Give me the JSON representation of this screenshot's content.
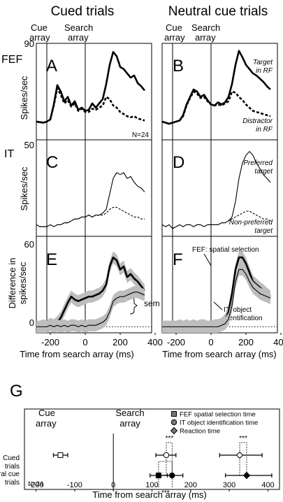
{
  "column_titles": [
    "Cued trials",
    "Neutral cue trials"
  ],
  "event_labels": {
    "cue_line1": "Cue",
    "cue_line2": "array",
    "search_line1": "Search",
    "search_line2": "array"
  },
  "row_labels": {
    "fef": "FEF",
    "it": "IT"
  },
  "ylabels": {
    "rate": "Spikes/sec",
    "diff_line1": "Difference in",
    "diff_line2": "spikes/sec"
  },
  "xlabel": "Time from search array (ms)",
  "n_note": "N=24",
  "chart_data": [
    {
      "id": "A",
      "type": "line",
      "ylim": [
        0,
        90
      ],
      "top_tick": "90",
      "xlim": [
        -280,
        340
      ],
      "series": [
        {
          "name": "Target in RF",
          "style": "solid-thick",
          "x": [
            -280,
            -240,
            -220,
            -200,
            -180,
            -160,
            -140,
            -120,
            -100,
            -80,
            -60,
            -40,
            -20,
            0,
            20,
            40,
            60,
            80,
            100,
            120,
            140,
            160,
            180,
            200,
            220,
            240,
            260,
            280,
            300,
            320,
            340
          ],
          "values": [
            17,
            16,
            17,
            19,
            33,
            51,
            45,
            36,
            40,
            32,
            36,
            28,
            30,
            27,
            28,
            34,
            30,
            34,
            38,
            52,
            70,
            82,
            78,
            68,
            66,
            62,
            58,
            60,
            53,
            50,
            46
          ]
        },
        {
          "name": "Distractor in RF",
          "style": "dashed-thick",
          "x": [
            -280,
            -240,
            -220,
            -200,
            -180,
            -160,
            -140,
            -120,
            -100,
            -80,
            -60,
            -40,
            -20,
            0,
            20,
            40,
            60,
            80,
            100,
            120,
            140,
            160,
            180,
            200,
            220,
            240,
            260,
            280,
            300,
            320,
            340
          ],
          "values": [
            17,
            16,
            17,
            19,
            32,
            48,
            42,
            34,
            37,
            31,
            34,
            27,
            29,
            26,
            26,
            29,
            28,
            30,
            32,
            40,
            38,
            32,
            30,
            26,
            24,
            22,
            21,
            22,
            20,
            19,
            18
          ]
        }
      ]
    },
    {
      "id": "B",
      "type": "line",
      "ylim": [
        0,
        90
      ],
      "xlim": [
        -280,
        340
      ],
      "series": [
        {
          "name": "Target in RF",
          "style": "solid-thick",
          "x": [
            -280,
            -240,
            -220,
            -200,
            -180,
            -160,
            -140,
            -120,
            -100,
            -80,
            -60,
            -40,
            -20,
            0,
            20,
            40,
            60,
            80,
            100,
            120,
            140,
            160,
            180,
            200,
            220,
            240,
            260,
            280,
            300,
            320,
            340
          ],
          "values": [
            17,
            15,
            16,
            17,
            18,
            23,
            33,
            40,
            47,
            45,
            40,
            42,
            37,
            33,
            32,
            35,
            33,
            35,
            40,
            52,
            70,
            83,
            77,
            70,
            66,
            62,
            60,
            57,
            54,
            50,
            47
          ]
        },
        {
          "name": "Distractor in RF",
          "style": "dashed-thick",
          "x": [
            -280,
            -240,
            -220,
            -200,
            -180,
            -160,
            -140,
            -120,
            -100,
            -80,
            -60,
            -40,
            -20,
            0,
            20,
            40,
            60,
            80,
            100,
            120,
            140,
            160,
            180,
            200,
            220,
            240,
            260,
            280,
            300,
            320,
            340
          ],
          "values": [
            17,
            15,
            16,
            17,
            18,
            22,
            32,
            39,
            45,
            43,
            39,
            40,
            36,
            33,
            32,
            33,
            32,
            34,
            36,
            45,
            44,
            40,
            37,
            33,
            30,
            27,
            26,
            25,
            24,
            23,
            22
          ]
        }
      ]
    },
    {
      "id": "C",
      "type": "line",
      "ylim": [
        0,
        50
      ],
      "top_tick": "50",
      "xlim": [
        -280,
        340
      ],
      "series": [
        {
          "name": "Preferred target",
          "style": "solid-thin",
          "x": [
            -280,
            -260,
            -240,
            -220,
            -200,
            -180,
            -160,
            -140,
            -120,
            -100,
            -80,
            -60,
            -40,
            -20,
            0,
            20,
            40,
            60,
            80,
            100,
            120,
            140,
            160,
            180,
            200,
            220,
            240,
            260,
            280,
            300,
            320,
            340
          ],
          "values": [
            6,
            5,
            5,
            5,
            6,
            5,
            6,
            6,
            7,
            7,
            8,
            9,
            9,
            10,
            10,
            11,
            10,
            11,
            11,
            12,
            14,
            22,
            30,
            33,
            32,
            33,
            30,
            31,
            28,
            26,
            25,
            23
          ]
        },
        {
          "name": "Non-preferred target",
          "style": "dashed-thin",
          "x": [
            -280,
            -260,
            -240,
            -220,
            -200,
            -180,
            -160,
            -140,
            -120,
            -100,
            -80,
            -60,
            -40,
            -20,
            0,
            20,
            40,
            60,
            80,
            100,
            120,
            140,
            160,
            180,
            200,
            220,
            240,
            260,
            280,
            300,
            320,
            340
          ],
          "values": [
            6,
            5,
            5,
            5,
            6,
            5,
            6,
            6,
            7,
            7,
            8,
            9,
            9,
            10,
            10,
            11,
            10,
            11,
            11,
            11,
            12,
            14,
            15,
            15,
            14,
            13,
            12,
            11,
            10,
            10,
            9,
            9
          ]
        }
      ]
    },
    {
      "id": "D",
      "type": "line",
      "ylim": [
        0,
        50
      ],
      "xlim": [
        -280,
        340
      ],
      "series": [
        {
          "name": "Preferred target",
          "style": "solid-thin",
          "x": [
            -280,
            -260,
            -240,
            -220,
            -200,
            -180,
            -160,
            -140,
            -120,
            -100,
            -80,
            -60,
            -40,
            -20,
            0,
            20,
            40,
            60,
            80,
            100,
            120,
            140,
            160,
            180,
            200,
            220,
            240,
            260,
            280,
            300,
            320,
            340
          ],
          "values": [
            6,
            5,
            6,
            4,
            5,
            6,
            5,
            6,
            6,
            5,
            6,
            6,
            5,
            6,
            6,
            6,
            6,
            7,
            7,
            8,
            10,
            18,
            30,
            38,
            42,
            44,
            42,
            38,
            35,
            32,
            30,
            28
          ]
        },
        {
          "name": "Non-preferred target",
          "style": "dashed-thin",
          "x": [
            -280,
            -260,
            -240,
            -220,
            -200,
            -180,
            -160,
            -140,
            -120,
            -100,
            -80,
            -60,
            -40,
            -20,
            0,
            20,
            40,
            60,
            80,
            100,
            120,
            140,
            160,
            180,
            200,
            220,
            240,
            260,
            280,
            300,
            320,
            340
          ],
          "values": [
            6,
            5,
            6,
            4,
            5,
            6,
            5,
            6,
            6,
            5,
            6,
            6,
            5,
            6,
            6,
            6,
            6,
            7,
            7,
            8,
            9,
            10,
            11,
            12,
            13,
            13,
            12,
            11,
            10,
            9,
            9,
            8
          ]
        }
      ]
    },
    {
      "id": "E",
      "type": "line",
      "ylim": [
        -4,
        60
      ],
      "top_tick": "60",
      "bottom_tick": "0",
      "xlim": [
        -280,
        340
      ],
      "series": [
        {
          "name": "FEF: spatial selection",
          "style": "solid-thick",
          "sem": 4,
          "x": [
            -280,
            -260,
            -240,
            -220,
            -200,
            -180,
            -160,
            -140,
            -120,
            -100,
            -80,
            -60,
            -40,
            -20,
            0,
            20,
            40,
            60,
            80,
            100,
            120,
            140,
            160,
            180,
            200,
            220,
            240,
            260,
            280,
            300,
            320,
            340
          ],
          "values": [
            0,
            0,
            1,
            0,
            2,
            1,
            3,
            6,
            11,
            16,
            20,
            18,
            17,
            18,
            19,
            20,
            20,
            21,
            22,
            24,
            28,
            40,
            46,
            44,
            38,
            40,
            33,
            35,
            32,
            30,
            27,
            24
          ]
        },
        {
          "name": "IT: object identification",
          "style": "solid-thin",
          "sem": 4,
          "x": [
            -280,
            -260,
            -240,
            -220,
            -200,
            -180,
            -160,
            -140,
            -120,
            -100,
            -80,
            -60,
            -40,
            -20,
            0,
            20,
            40,
            60,
            80,
            100,
            120,
            140,
            160,
            180,
            200,
            220,
            240,
            260,
            280,
            300,
            320,
            340
          ],
          "values": [
            0,
            0,
            0,
            0,
            1,
            0,
            1,
            0,
            1,
            0,
            1,
            1,
            0,
            1,
            0,
            1,
            1,
            1,
            2,
            3,
            5,
            10,
            17,
            19,
            20,
            20,
            21,
            22,
            23,
            23,
            22,
            21
          ]
        }
      ],
      "annotations": [
        "sem"
      ]
    },
    {
      "id": "F",
      "type": "line",
      "ylim": [
        -4,
        60
      ],
      "xlim": [
        -280,
        340
      ],
      "series": [
        {
          "name": "FEF: spatial selection",
          "style": "solid-thick",
          "sem": 4,
          "x": [
            -280,
            -260,
            -240,
            -220,
            -200,
            -180,
            -160,
            -140,
            -120,
            -100,
            -80,
            -60,
            -40,
            -20,
            0,
            20,
            40,
            60,
            80,
            100,
            120,
            140,
            160,
            180,
            200,
            220,
            240,
            260,
            280,
            300,
            320,
            340
          ],
          "values": [
            0,
            0,
            0,
            0,
            0,
            1,
            0,
            1,
            0,
            1,
            0,
            1,
            1,
            0,
            0,
            1,
            1,
            2,
            4,
            10,
            22,
            38,
            46,
            46,
            42,
            36,
            30,
            28,
            26,
            24,
            22,
            20
          ]
        },
        {
          "name": "IT: object identification",
          "style": "solid-thin",
          "sem": 4,
          "x": [
            -280,
            -260,
            -240,
            -220,
            -200,
            -180,
            -160,
            -140,
            -120,
            -100,
            -80,
            -60,
            -40,
            -20,
            0,
            20,
            40,
            60,
            80,
            100,
            120,
            140,
            160,
            180,
            200,
            220,
            240,
            260,
            280,
            300,
            320,
            340
          ],
          "values": [
            0,
            0,
            0,
            0,
            0,
            0,
            0,
            0,
            0,
            0,
            0,
            0,
            0,
            0,
            0,
            0,
            0,
            1,
            2,
            5,
            14,
            30,
            38,
            38,
            35,
            30,
            26,
            24,
            22,
            21,
            20,
            19
          ]
        }
      ],
      "annotations": [
        "FEF: spatial selection",
        "IT: object identification"
      ]
    },
    {
      "id": "G",
      "type": "scatter",
      "xlim": [
        -230,
        430
      ],
      "xticks": [
        -200,
        -100,
        0,
        100,
        200,
        300,
        400
      ],
      "rows": [
        "Cued trials",
        "Neutral cue trials"
      ],
      "series": [
        {
          "name": "FEF spatial selection time",
          "marker": "square",
          "points": [
            {
              "row": "Cued trials",
              "x": -137,
              "lo": -155,
              "hi": -118,
              "filled": false
            },
            {
              "row": "Neutral cue trials",
              "x": 117,
              "lo": 95,
              "hi": 140,
              "filled": true
            }
          ]
        },
        {
          "name": "IT object identification time",
          "marker": "circle",
          "points": [
            {
              "row": "Cued trials",
              "x": 137,
              "lo": 110,
              "hi": 162,
              "filled": false
            },
            {
              "row": "Neutral cue trials",
              "x": 152,
              "lo": 120,
              "hi": 180,
              "filled": true
            }
          ]
        },
        {
          "name": "Reaction time",
          "marker": "diamond",
          "points": [
            {
              "row": "Cued trials",
              "x": 327,
              "lo": 275,
              "hi": 385,
              "filled": false
            },
            {
              "row": "Neutral cue trials",
              "x": 345,
              "lo": 290,
              "hi": 410,
              "filled": true
            }
          ]
        }
      ],
      "significance": [
        "***",
        "***",
        "***"
      ]
    }
  ],
  "legend_g": [
    "FEF spatial selection time",
    "IT object identification time",
    "Reaction time"
  ],
  "panel_g_rows": {
    "r1a": "Cued",
    "r1b": "trials",
    "r2a": "Neutral cue",
    "r2b": "trials"
  },
  "x_ticks_top": [
    "-200",
    "0",
    "200",
    "400"
  ],
  "side_labels": {
    "target_rf_1": "Target",
    "target_rf_2": "in RF",
    "distr_rf_1": "Distractor",
    "distr_rf_2": "in RF",
    "pref_1": "Preferred",
    "pref_2": "target",
    "nonpref_1": "Non-preferred",
    "nonpref_2": "target"
  }
}
